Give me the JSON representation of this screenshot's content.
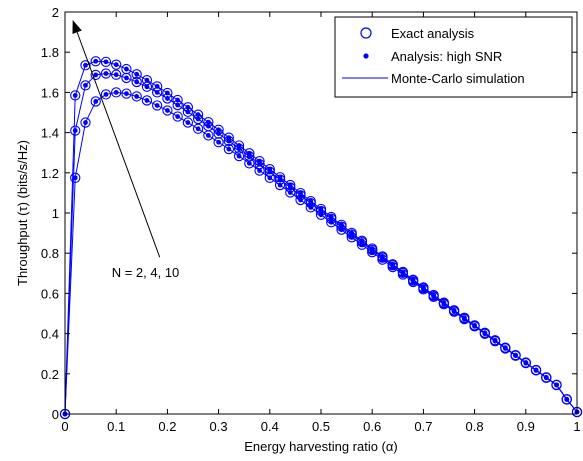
{
  "chart_data": {
    "type": "line",
    "xlabel": "Energy harvesting ratio (α)",
    "ylabel": "Throughput (τ) (bits/s/Hz)",
    "xlim": [
      0,
      1
    ],
    "ylim": [
      0,
      2
    ],
    "xticks": [
      "0",
      "0.1",
      "0.2",
      "0.3",
      "0.4",
      "0.5",
      "0.6",
      "0.7",
      "0.8",
      "0.9",
      "1"
    ],
    "yticks": [
      "0",
      "0.2",
      "0.4",
      "0.6",
      "0.8",
      "1",
      "1.2",
      "1.4",
      "1.6",
      "1.8",
      "2"
    ],
    "grid": false,
    "legend_position": "top-right",
    "legend": [
      {
        "label": "Exact analysis",
        "marker": "open-circle"
      },
      {
        "label": "Analysis: high SNR",
        "marker": "dot"
      },
      {
        "label": "Monte-Carlo simulation",
        "marker": "line"
      }
    ],
    "annotation": {
      "text": "N = 2, 4, 10",
      "arrow_from": [
        0.185,
        0.78
      ],
      "arrow_to": [
        0.015,
        1.96
      ]
    },
    "color": "#0000ff",
    "x": [
      0,
      0.02,
      0.04,
      0.06,
      0.08,
      0.1,
      0.12,
      0.14,
      0.16,
      0.18,
      0.2,
      0.22,
      0.24,
      0.26,
      0.28,
      0.3,
      0.32,
      0.34,
      0.36,
      0.38,
      0.4,
      0.42,
      0.44,
      0.46,
      0.48,
      0.5,
      0.52,
      0.54,
      0.56,
      0.58,
      0.6,
      0.62,
      0.64,
      0.66,
      0.68,
      0.7,
      0.72,
      0.74,
      0.76,
      0.78,
      0.8,
      0.82,
      0.84,
      0.86,
      0.88,
      0.9,
      0.92,
      0.94,
      0.96,
      0.98,
      1
    ],
    "series": [
      {
        "values": [
          0,
          1.175,
          1.45,
          1.555,
          1.59,
          1.6,
          1.594,
          1.58,
          1.56,
          1.535,
          1.51,
          1.48,
          1.45,
          1.419,
          1.386,
          1.352,
          1.318,
          1.283,
          1.247,
          1.211,
          1.175,
          1.139,
          1.102,
          1.065,
          1.028,
          0.991,
          0.954,
          0.917,
          0.879,
          0.842,
          0.805,
          0.768,
          0.731,
          0.694,
          0.657,
          0.62,
          0.583,
          0.546,
          0.509,
          0.472,
          0.436,
          0.399,
          0.362,
          0.326,
          0.29,
          0.253,
          0.217,
          0.18,
          0.144,
          0.072,
          0.01
        ]
      },
      {
        "values": [
          0,
          1.41,
          1.635,
          1.687,
          1.694,
          1.688,
          1.672,
          1.652,
          1.628,
          1.6,
          1.57,
          1.537,
          1.503,
          1.468,
          1.432,
          1.395,
          1.358,
          1.32,
          1.282,
          1.243,
          1.205,
          1.166,
          1.127,
          1.088,
          1.049,
          1.01,
          0.971,
          0.932,
          0.893,
          0.855,
          0.816,
          0.778,
          0.74,
          0.702,
          0.664,
          0.626,
          0.589,
          0.551,
          0.514,
          0.477,
          0.44,
          0.403,
          0.366,
          0.329,
          0.292,
          0.255,
          0.218,
          0.182,
          0.145,
          0.073,
          0.01
        ]
      },
      {
        "values": [
          0,
          1.585,
          1.735,
          1.755,
          1.752,
          1.738,
          1.716,
          1.69,
          1.661,
          1.63,
          1.597,
          1.562,
          1.526,
          1.489,
          1.452,
          1.414,
          1.375,
          1.336,
          1.297,
          1.258,
          1.218,
          1.178,
          1.139,
          1.099,
          1.059,
          1.02,
          0.98,
          0.941,
          0.901,
          0.862,
          0.823,
          0.784,
          0.745,
          0.707,
          0.668,
          0.63,
          0.592,
          0.554,
          0.516,
          0.479,
          0.441,
          0.404,
          0.367,
          0.33,
          0.293,
          0.256,
          0.219,
          0.182,
          0.145,
          0.073,
          0.01
        ]
      }
    ]
  }
}
